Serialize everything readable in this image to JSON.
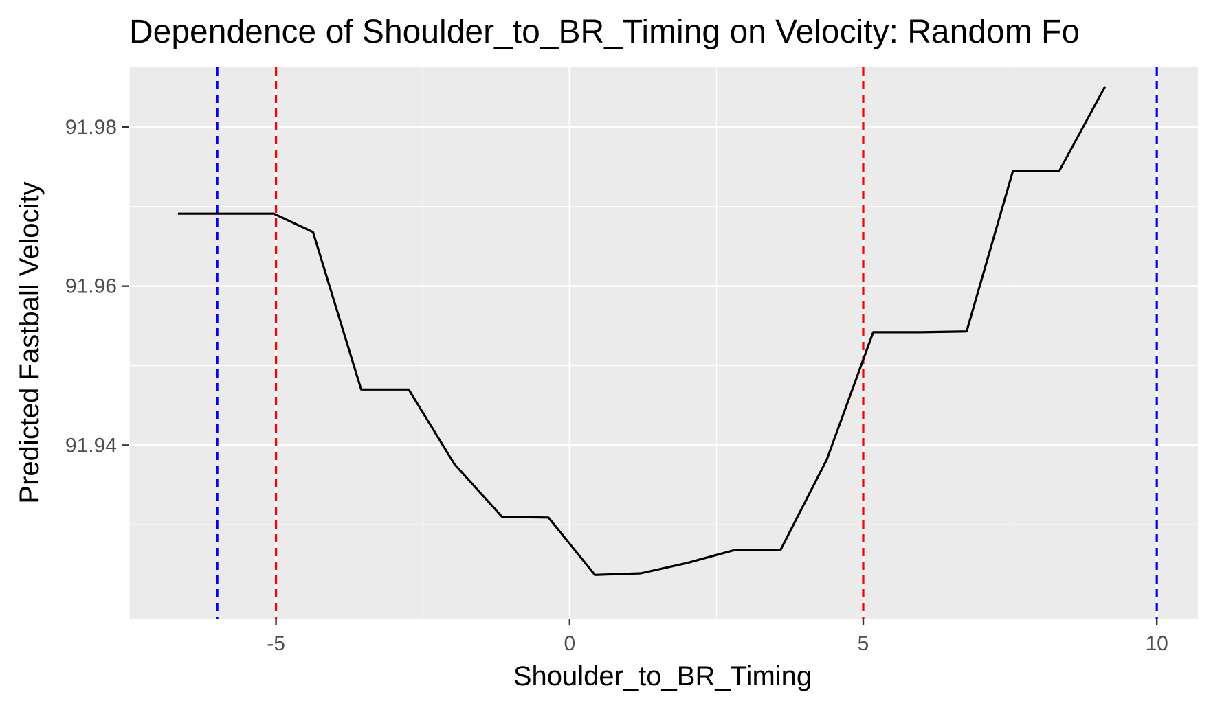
{
  "chart_data": {
    "type": "line",
    "title": "Dependence of Shoulder_to_BR_Timing on Velocity: Random Fo",
    "xlabel": "Shoulder_to_BR_Timing",
    "ylabel": "Predicted Fastball Velocity",
    "xlim": [
      -7.5,
      10.7
    ],
    "ylim": [
      91.9182,
      91.9875
    ],
    "x_ticks": [
      -5,
      0,
      5,
      10
    ],
    "x_tick_labels": [
      "-5",
      "0",
      "5",
      "10"
    ],
    "y_ticks": [
      91.94,
      91.96,
      91.98
    ],
    "y_tick_labels": [
      "91.94",
      "91.96",
      "91.98"
    ],
    "grid": true,
    "legend": "none",
    "background_color": "#ebebeb",
    "grid_color": "#ffffff",
    "series": [
      {
        "color": "#000000",
        "x": [
          -6.67,
          -5.85,
          -5.04,
          -4.37,
          -3.55,
          -2.74,
          -1.96,
          -1.15,
          -0.36,
          0.43,
          1.21,
          2.0,
          2.8,
          3.59,
          4.38,
          5.17,
          5.97,
          6.76,
          7.55,
          8.34,
          9.12
        ],
        "y": [
          91.9691,
          91.9691,
          91.9691,
          91.9668,
          91.947,
          91.947,
          91.9376,
          91.931,
          91.9309,
          91.9237,
          91.9239,
          91.9252,
          91.9268,
          91.9268,
          91.9382,
          91.9542,
          91.9542,
          91.9543,
          91.9745,
          91.9745,
          91.9851
        ]
      }
    ],
    "reference_lines": [
      {
        "x": -6,
        "color": "#0000ff",
        "style": "dashed"
      },
      {
        "x": -5,
        "color": "#ff0000",
        "style": "dashed"
      },
      {
        "x": 5,
        "color": "#ff0000",
        "style": "dashed"
      },
      {
        "x": 10,
        "color": "#0000ff",
        "style": "dashed"
      }
    ]
  }
}
